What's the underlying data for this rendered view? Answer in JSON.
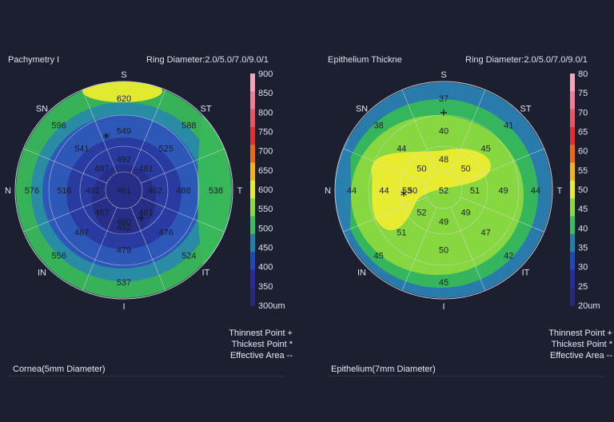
{
  "panels": [
    {
      "title": "Pachymetry I",
      "ring_diameter": "Ring Diameter:2.0/5.0/7.0/9.0/1",
      "footer": "Cornea(5mm Diameter)",
      "legend_lines": [
        "Thinnest Point +",
        "Thickest Point *",
        "Effective Area --"
      ],
      "directions": {
        "S": "S",
        "ST": "ST",
        "T": "T",
        "IT": "IT",
        "I": "I",
        "IN": "IN",
        "N": "N",
        "SN": "SN"
      },
      "thinnest_marker": "+",
      "thickest_marker": "*"
    },
    {
      "title": "Epithelium Thickne",
      "ring_diameter": "Ring Diameter:2.0/5.0/7.0/9.0/1",
      "footer": "Epithelium(7mm Diameter)",
      "legend_lines": [
        "Thinnest Point +",
        "Thickest Point *",
        "Effective Area --"
      ],
      "directions": {
        "S": "S",
        "ST": "ST",
        "T": "T",
        "IT": "IT",
        "I": "I",
        "IN": "IN",
        "N": "N",
        "SN": "SN"
      },
      "thinnest_marker": "+",
      "thickest_marker": "*"
    }
  ],
  "chart_data": [
    {
      "type": "heatmap",
      "title": "Pachymetry I",
      "subtitle": "Ring Diameter:2.0/5.0/7.0/9.0/1",
      "unit": "um",
      "colorbar": {
        "ticks": [
          900,
          850,
          800,
          750,
          700,
          650,
          600,
          550,
          500,
          450,
          400,
          350,
          300
        ],
        "tick_labels": [
          "900",
          "850",
          "800",
          "750",
          "700",
          "650",
          "600",
          "550",
          "500",
          "450",
          "400",
          "350",
          "300um"
        ],
        "colors": [
          "#f4a4b6",
          "#ee8096",
          "#e85566",
          "#e03030",
          "#ee6a10",
          "#f2b418",
          "#e8ec30",
          "#90d840",
          "#38c060",
          "#2080a8",
          "#2048b8",
          "#282c98",
          "#282878"
        ]
      },
      "rings": {
        "center": [
          461
        ],
        "ring1": [
          492,
          481,
          462,
          461,
          450,
          467,
          481,
          487
        ],
        "ring2": [
          549,
          525,
          488,
          476,
          479,
          467,
          516,
          541
        ],
        "ring3": [
          620,
          588,
          538,
          524,
          537,
          556,
          576,
          596
        ],
        "ring1_extra": [
          452
        ]
      }
    },
    {
      "type": "heatmap",
      "title": "Epithelium Thickne",
      "subtitle": "Ring Diameter:2.0/5.0/7.0/9.0/1",
      "unit": "um",
      "colorbar": {
        "ticks": [
          80,
          75,
          70,
          65,
          60,
          55,
          50,
          45,
          40,
          35,
          30,
          25,
          20
        ],
        "tick_labels": [
          "80",
          "75",
          "70",
          "65",
          "60",
          "55",
          "50",
          "45",
          "40",
          "35",
          "30",
          "25",
          "20um"
        ],
        "colors": [
          "#f4a4b6",
          "#ee8096",
          "#e85566",
          "#e03030",
          "#ee6a10",
          "#f2b418",
          "#e8ec30",
          "#90d840",
          "#38c060",
          "#2080a8",
          "#2048b8",
          "#282c98",
          "#282878"
        ]
      },
      "rings": {
        "center": [
          52
        ],
        "ring1": [
          48,
          50,
          51,
          49,
          49,
          52,
          50,
          50
        ],
        "ring2": [
          40,
          45,
          49,
          47,
          50,
          51,
          44,
          44
        ],
        "ring3": [
          37,
          41,
          44,
          42,
          45,
          45,
          44,
          38
        ],
        "ring1_extra": [
          53
        ]
      }
    }
  ]
}
